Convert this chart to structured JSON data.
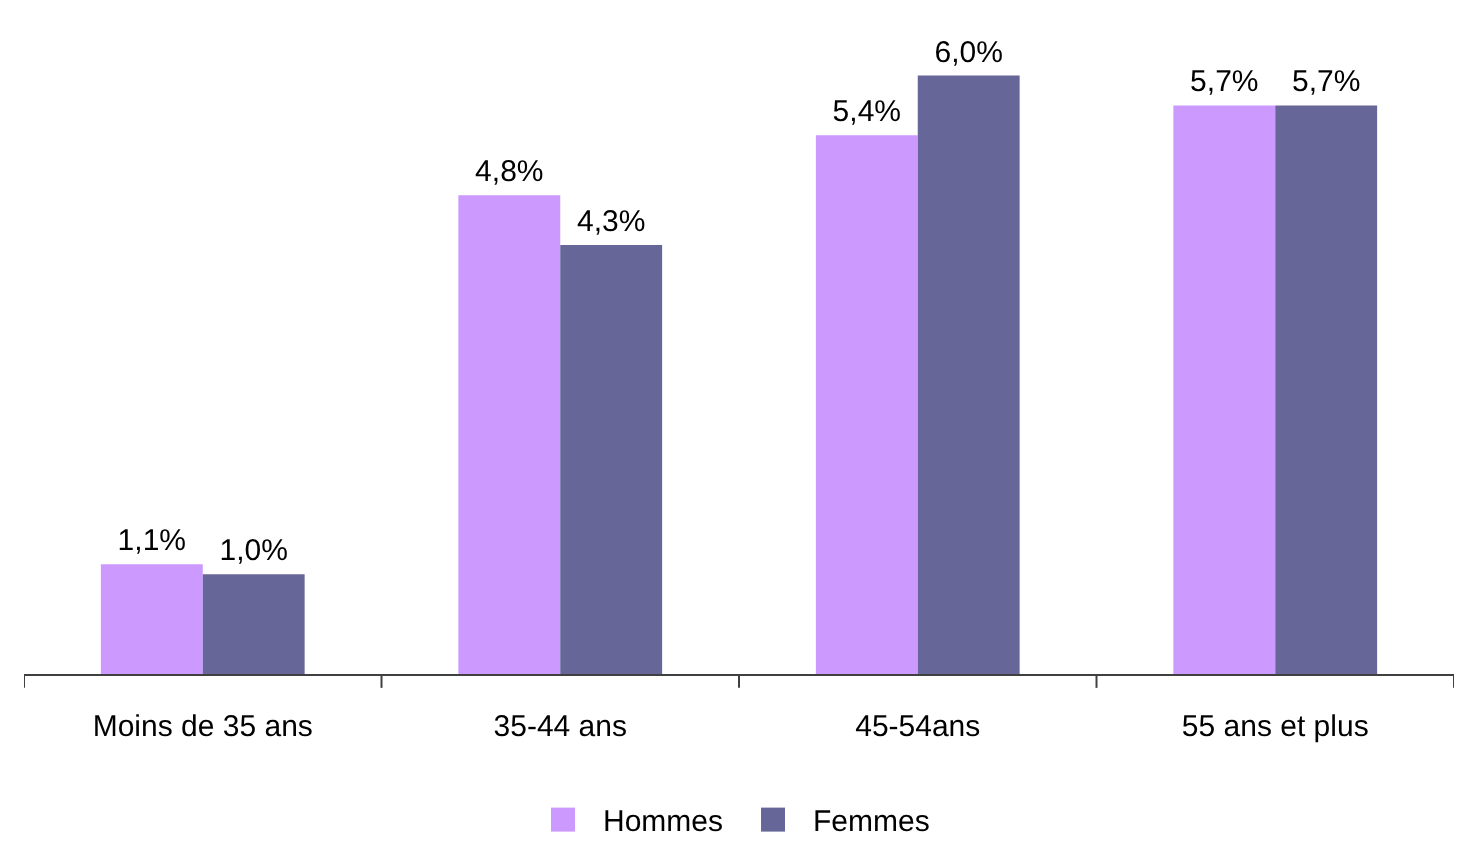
{
  "chart_data": {
    "type": "bar",
    "categories": [
      "Moins de 35 ans",
      "35-44 ans",
      "45-54ans",
      "55 ans et plus"
    ],
    "series": [
      {
        "name": "Hommes",
        "color": "#cc99ff",
        "values": [
          1.1,
          4.8,
          5.4,
          5.7
        ],
        "value_labels": [
          "1,1%",
          "4,8%",
          "5,4%",
          "5,7%"
        ]
      },
      {
        "name": "Femmes",
        "color": "#666699",
        "values": [
          1.0,
          4.3,
          6.0,
          5.7
        ],
        "value_labels": [
          "1,0%",
          "4,3%",
          "6,0%",
          "5,7%"
        ]
      }
    ],
    "legend": "bottom",
    "tick_labels": "x"
  }
}
